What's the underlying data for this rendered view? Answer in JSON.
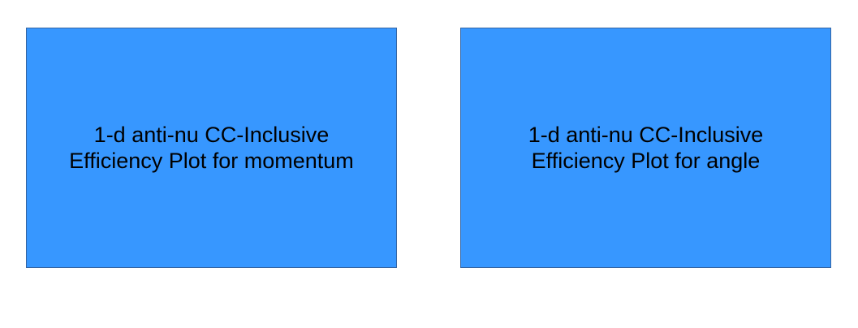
{
  "colors": {
    "box_fill": "#3797ff",
    "box_border": "#3465a4",
    "text": "#000000",
    "background": "#ffffff"
  },
  "boxes": [
    {
      "line1": "1-d anti-nu CC-Inclusive",
      "line2": "Efficiency Plot for momentum"
    },
    {
      "line1": "1-d anti-nu CC-Inclusive",
      "line2": "Efficiency Plot for angle"
    }
  ]
}
